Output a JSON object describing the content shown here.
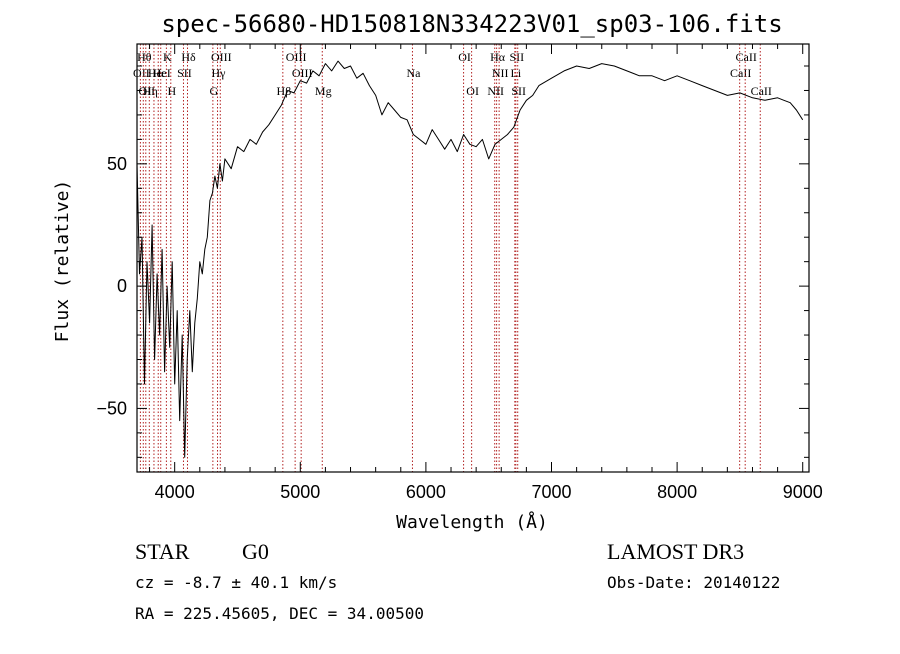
{
  "chart_data": {
    "type": "line",
    "title": "spec-56680-HD150818N334223V01_sp03-106.fits",
    "xlabel": "Wavelength (Å)",
    "ylabel": "Flux (relative)",
    "xlim": [
      3700,
      9050
    ],
    "ylim": [
      -76,
      99
    ],
    "xticks": [
      4000,
      5000,
      6000,
      7000,
      8000,
      9000
    ],
    "yticks": [
      -50,
      0,
      50
    ],
    "series": [
      {
        "name": "flux",
        "x": [
          3700,
          3720,
          3740,
          3760,
          3780,
          3800,
          3820,
          3840,
          3860,
          3880,
          3900,
          3920,
          3940,
          3960,
          3980,
          4000,
          4020,
          4040,
          4060,
          4080,
          4100,
          4120,
          4140,
          4160,
          4180,
          4200,
          4220,
          4240,
          4260,
          4280,
          4300,
          4320,
          4340,
          4360,
          4380,
          4400,
          4450,
          4500,
          4550,
          4600,
          4650,
          4700,
          4750,
          4800,
          4850,
          4900,
          4950,
          5000,
          5050,
          5100,
          5150,
          5200,
          5250,
          5300,
          5350,
          5400,
          5450,
          5500,
          5550,
          5600,
          5650,
          5700,
          5750,
          5800,
          5850,
          5900,
          5950,
          6000,
          6050,
          6100,
          6150,
          6200,
          6250,
          6300,
          6350,
          6400,
          6450,
          6500,
          6550,
          6600,
          6650,
          6700,
          6750,
          6800,
          6850,
          6900,
          7000,
          7100,
          7200,
          7300,
          7400,
          7500,
          7600,
          7700,
          7800,
          7900,
          8000,
          8100,
          8200,
          8300,
          8400,
          8500,
          8600,
          8700,
          8800,
          8850,
          8900,
          8950,
          9000
        ],
        "values": [
          50,
          5,
          20,
          -40,
          10,
          -15,
          25,
          -30,
          5,
          -20,
          15,
          -35,
          0,
          -25,
          10,
          -40,
          -10,
          -55,
          -20,
          -70,
          -30,
          -10,
          -35,
          -15,
          -5,
          10,
          5,
          15,
          20,
          35,
          38,
          45,
          40,
          50,
          43,
          52,
          48,
          57,
          55,
          60,
          58,
          63,
          66,
          70,
          74,
          80,
          79,
          84,
          83,
          88,
          86,
          91,
          88,
          92,
          89,
          90,
          85,
          87,
          82,
          78,
          70,
          75,
          72,
          69,
          68,
          62,
          60,
          58,
          64,
          60,
          56,
          60,
          55,
          62,
          58,
          57,
          60,
          52,
          58,
          60,
          62,
          65,
          72,
          76,
          78,
          82,
          85,
          88,
          90,
          89,
          91,
          90,
          88,
          86,
          86,
          84,
          86,
          84,
          82,
          80,
          78,
          79,
          77,
          76,
          77,
          76,
          75,
          72,
          68
        ]
      }
    ],
    "spectral_lines": [
      {
        "wl": 3727,
        "label": "OII",
        "row": 1
      },
      {
        "wl": 3750,
        "label": "Hθ",
        "row": 0
      },
      {
        "wl": 3770,
        "label": "OII",
        "row": 2
      },
      {
        "wl": 3798,
        "label": "Hη",
        "row": 2
      },
      {
        "wl": 3835,
        "label": "He",
        "row": 1
      },
      {
        "wl": 3869,
        "label": "Hε",
        "row": 1
      },
      {
        "wl": 3889,
        "label": "HeI",
        "row": 1
      },
      {
        "wl": 3934,
        "label": "K",
        "row": 0
      },
      {
        "wl": 3969,
        "label": "H",
        "row": 2
      },
      {
        "wl": 4070,
        "label": "SII",
        "row": 1
      },
      {
        "wl": 4102,
        "label": "Hδ",
        "row": 0
      },
      {
        "wl": 4304,
        "label": "G",
        "row": 2
      },
      {
        "wl": 4341,
        "label": "Hγ",
        "row": 1
      },
      {
        "wl": 4363,
        "label": "OIII",
        "row": 0
      },
      {
        "wl": 4861,
        "label": "Hβ",
        "row": 2
      },
      {
        "wl": 4959,
        "label": "OIII",
        "row": 0
      },
      {
        "wl": 5007,
        "label": "OIII",
        "row": 1
      },
      {
        "wl": 5175,
        "label": "Mg",
        "row": 2
      },
      {
        "wl": 5893,
        "label": "Na",
        "row": 1
      },
      {
        "wl": 6300,
        "label": "OI",
        "row": 0
      },
      {
        "wl": 6364,
        "label": "OI",
        "row": 2
      },
      {
        "wl": 6548,
        "label": "NII",
        "row": 2
      },
      {
        "wl": 6563,
        "label": "Hα",
        "row": 0
      },
      {
        "wl": 6583,
        "label": "NII",
        "row": 1
      },
      {
        "wl": 6708,
        "label": "Li",
        "row": 1
      },
      {
        "wl": 6716,
        "label": "SII",
        "row": 0
      },
      {
        "wl": 6731,
        "label": "SII",
        "row": 2
      },
      {
        "wl": 8498,
        "label": "CaII",
        "row": 1
      },
      {
        "wl": 8542,
        "label": "CaII",
        "row": 0
      },
      {
        "wl": 8662,
        "label": "CaII",
        "row": 2
      }
    ]
  },
  "info": {
    "object_type": "STAR",
    "subclass": "G0",
    "survey": "LAMOST DR3",
    "redshift": "cz = -8.7 ± 40.1 km/s",
    "obs_date": "Obs-Date: 20140122",
    "coords": "RA = 225.45605, DEC =  34.00500"
  },
  "colors": {
    "line_marker": "#b22222",
    "spectrum": "#000000",
    "axis": "#000000"
  }
}
